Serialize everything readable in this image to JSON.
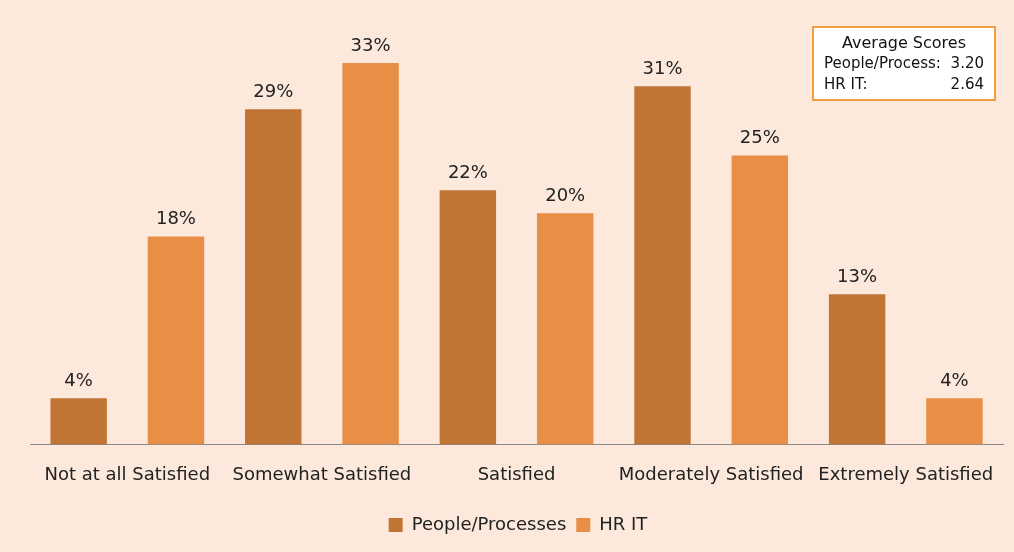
{
  "chart_data": {
    "type": "bar",
    "categories": [
      "Not at all Satisfied",
      "Somewhat Satisfied",
      "Satisfied",
      "Moderately Satisfied",
      "Extremely Satisfied"
    ],
    "series": [
      {
        "name": "People/Processes",
        "color": "#c17534",
        "values": [
          4,
          29,
          22,
          31,
          13
        ],
        "value_labels": [
          "4%",
          "29%",
          "22%",
          "31%",
          "13%"
        ]
      },
      {
        "name": "HR IT",
        "color": "#e88e45",
        "values": [
          18,
          33,
          20,
          25,
          4
        ],
        "value_labels": [
          "18%",
          "33%",
          "20%",
          "25%",
          "4%"
        ]
      }
    ],
    "annotations": [
      "Average Scores",
      "People/Process:   3.20",
      "HR IT:   2.64"
    ],
    "legend": "bottom",
    "grid": false,
    "tick_labels": "x"
  }
}
